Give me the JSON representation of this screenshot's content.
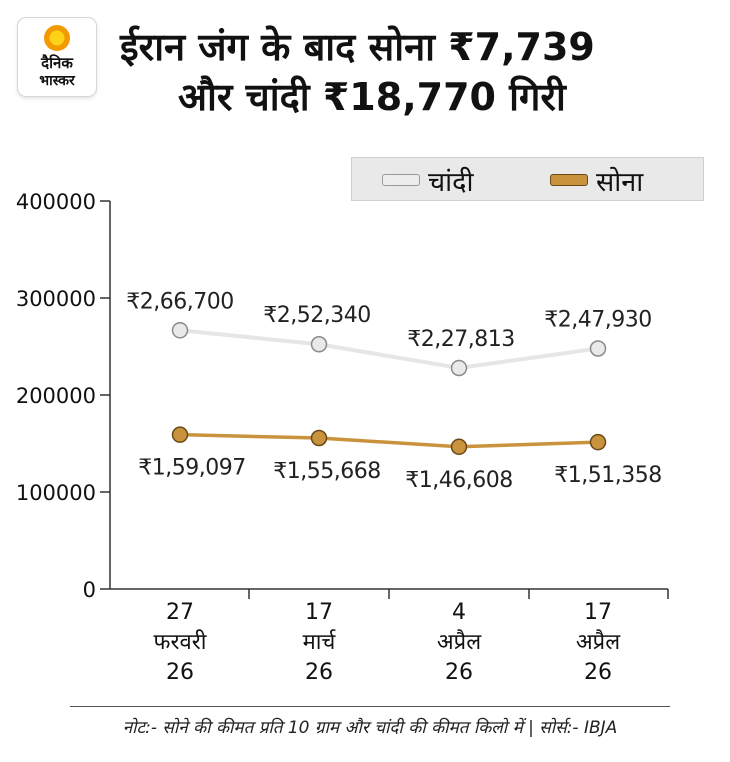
{
  "brand": {
    "logo_line1": "दैनिक",
    "logo_line2": "भास्कर"
  },
  "headline": {
    "line1": "ईरान जंग के बाद सोना ₹7,739",
    "line2": "और चांदी ₹18,770 गिरी"
  },
  "colors": {
    "silver_line": "#e6e6e6",
    "silver_marker": "#e9e9e9",
    "gold_line": "#c9933e",
    "gold_marker": "#c9933e",
    "axis": "#333333"
  },
  "chart_data": {
    "type": "line",
    "categories": [
      [
        "27",
        "फरवरी",
        "26"
      ],
      [
        "17",
        "मार्च",
        "26"
      ],
      [
        "4",
        "अप्रैल",
        "26"
      ],
      [
        "17",
        "अप्रैल",
        "26"
      ]
    ],
    "series": [
      {
        "name": "चांदी",
        "values": [
          266700,
          252340,
          227813,
          247930
        ],
        "labels": [
          "₹2,66,700",
          "₹2,52,340",
          "₹2,27,813",
          "₹2,47,930"
        ]
      },
      {
        "name": "सोना",
        "values": [
          159097,
          155668,
          146608,
          151358
        ],
        "labels": [
          "₹1,59,097",
          "₹1,55,668",
          "₹1,46,608",
          "₹1,51,358"
        ]
      }
    ],
    "yticks": [
      "0",
      "100000",
      "200000",
      "300000",
      "400000"
    ],
    "ylim": [
      0,
      400000
    ],
    "grid": false,
    "legend_position": "top-right"
  },
  "note": "नोट:- सोने की कीमत प्रति 10 ग्राम और चांदी की कीमत किलो में | सोर्स:- IBJA"
}
